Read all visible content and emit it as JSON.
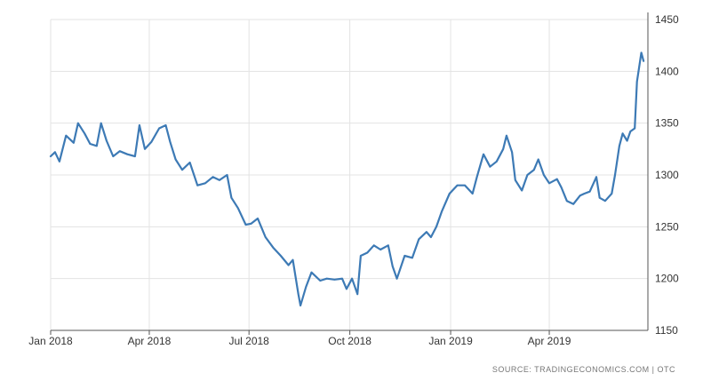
{
  "chart_data": {
    "type": "line",
    "title": "",
    "xlabel": "",
    "ylabel": "",
    "x_ticks": [
      "Jan 2018",
      "Apr 2018",
      "Jul 2018",
      "Oct 2018",
      "Jan 2019",
      "Apr 2019"
    ],
    "y_ticks": [
      1150,
      1200,
      1250,
      1300,
      1350,
      1400,
      1450
    ],
    "ylim": [
      1150,
      1450
    ],
    "xlim": [
      "2018-01-01",
      "2019-06-30"
    ],
    "grid": "vertical and horizontal, light gray",
    "y_axis_side": "right",
    "line_color": "#3d7ab5",
    "series": [
      {
        "name": "",
        "points": [
          [
            "2018-01-01",
            1318
          ],
          [
            "2018-01-05",
            1322
          ],
          [
            "2018-01-09",
            1313
          ],
          [
            "2018-01-15",
            1338
          ],
          [
            "2018-01-22",
            1331
          ],
          [
            "2018-01-26",
            1350
          ],
          [
            "2018-02-01",
            1340
          ],
          [
            "2018-02-06",
            1330
          ],
          [
            "2018-02-12",
            1328
          ],
          [
            "2018-02-16",
            1350
          ],
          [
            "2018-02-21",
            1333
          ],
          [
            "2018-02-27",
            1318
          ],
          [
            "2018-03-05",
            1323
          ],
          [
            "2018-03-12",
            1320
          ],
          [
            "2018-03-19",
            1318
          ],
          [
            "2018-03-23",
            1348
          ],
          [
            "2018-03-28",
            1325
          ],
          [
            "2018-04-03",
            1332
          ],
          [
            "2018-04-10",
            1345
          ],
          [
            "2018-04-16",
            1348
          ],
          [
            "2018-04-20",
            1332
          ],
          [
            "2018-04-25",
            1315
          ],
          [
            "2018-05-01",
            1305
          ],
          [
            "2018-05-08",
            1312
          ],
          [
            "2018-05-15",
            1290
          ],
          [
            "2018-05-22",
            1292
          ],
          [
            "2018-05-29",
            1298
          ],
          [
            "2018-06-04",
            1295
          ],
          [
            "2018-06-11",
            1300
          ],
          [
            "2018-06-15",
            1278
          ],
          [
            "2018-06-21",
            1268
          ],
          [
            "2018-06-28",
            1252
          ],
          [
            "2018-07-03",
            1253
          ],
          [
            "2018-07-09",
            1258
          ],
          [
            "2018-07-16",
            1240
          ],
          [
            "2018-07-23",
            1230
          ],
          [
            "2018-07-30",
            1222
          ],
          [
            "2018-08-06",
            1213
          ],
          [
            "2018-08-10",
            1218
          ],
          [
            "2018-08-15",
            1185
          ],
          [
            "2018-08-17",
            1174
          ],
          [
            "2018-08-22",
            1192
          ],
          [
            "2018-08-27",
            1206
          ],
          [
            "2018-09-04",
            1198
          ],
          [
            "2018-09-10",
            1200
          ],
          [
            "2018-09-17",
            1199
          ],
          [
            "2018-09-24",
            1200
          ],
          [
            "2018-09-28",
            1190
          ],
          [
            "2018-10-03",
            1200
          ],
          [
            "2018-10-08",
            1185
          ],
          [
            "2018-10-11",
            1222
          ],
          [
            "2018-10-17",
            1225
          ],
          [
            "2018-10-23",
            1232
          ],
          [
            "2018-10-29",
            1228
          ],
          [
            "2018-11-05",
            1232
          ],
          [
            "2018-11-09",
            1212
          ],
          [
            "2018-11-13",
            1200
          ],
          [
            "2018-11-20",
            1222
          ],
          [
            "2018-11-27",
            1220
          ],
          [
            "2018-12-03",
            1238
          ],
          [
            "2018-12-10",
            1245
          ],
          [
            "2018-12-14",
            1240
          ],
          [
            "2018-12-19",
            1250
          ],
          [
            "2018-12-24",
            1265
          ],
          [
            "2018-12-31",
            1282
          ],
          [
            "2019-01-07",
            1290
          ],
          [
            "2019-01-14",
            1290
          ],
          [
            "2019-01-21",
            1282
          ],
          [
            "2019-01-25",
            1298
          ],
          [
            "2019-01-31",
            1320
          ],
          [
            "2019-02-06",
            1308
          ],
          [
            "2019-02-12",
            1313
          ],
          [
            "2019-02-18",
            1325
          ],
          [
            "2019-02-21",
            1338
          ],
          [
            "2019-02-26",
            1322
          ],
          [
            "2019-03-01",
            1295
          ],
          [
            "2019-03-07",
            1285
          ],
          [
            "2019-03-12",
            1300
          ],
          [
            "2019-03-18",
            1305
          ],
          [
            "2019-03-22",
            1315
          ],
          [
            "2019-03-27",
            1300
          ],
          [
            "2019-04-01",
            1292
          ],
          [
            "2019-04-08",
            1296
          ],
          [
            "2019-04-12",
            1288
          ],
          [
            "2019-04-17",
            1275
          ],
          [
            "2019-04-23",
            1272
          ],
          [
            "2019-04-29",
            1280
          ],
          [
            "2019-05-03",
            1282
          ],
          [
            "2019-05-08",
            1284
          ],
          [
            "2019-05-14",
            1298
          ],
          [
            "2019-05-17",
            1278
          ],
          [
            "2019-05-22",
            1275
          ],
          [
            "2019-05-28",
            1282
          ],
          [
            "2019-05-31",
            1300
          ],
          [
            "2019-06-04",
            1328
          ],
          [
            "2019-06-07",
            1340
          ],
          [
            "2019-06-11",
            1333
          ],
          [
            "2019-06-14",
            1342
          ],
          [
            "2019-06-18",
            1345
          ],
          [
            "2019-06-20",
            1390
          ],
          [
            "2019-06-24",
            1418
          ],
          [
            "2019-06-26",
            1410
          ]
        ]
      }
    ],
    "source": "SOURCE: TRADINGECONOMICS.COM  |  OTC"
  }
}
